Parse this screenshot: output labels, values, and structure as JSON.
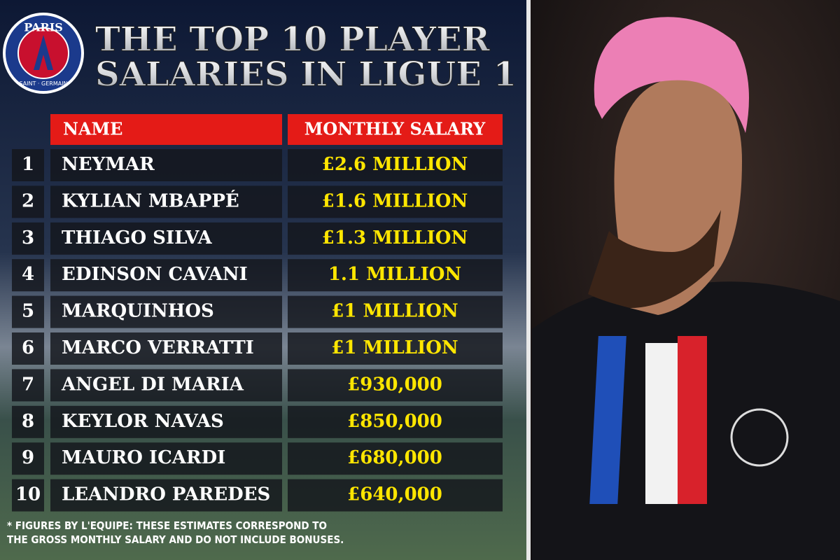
{
  "logo": {
    "top": "PARIS",
    "bottom": "SAINT · GERMAIN"
  },
  "header": {
    "title_lines": [
      "THE TOP 10 PLAYER",
      "SALARIES IN LIGUE 1"
    ]
  },
  "table": {
    "columns": [
      "NAME",
      "MONTHLY SALARY"
    ],
    "rows": [
      [
        "1",
        "NEYMAR",
        "£2.6 MILLION"
      ],
      [
        "2",
        "KYLIAN MBAPPÉ",
        "£1.6 MILLION"
      ],
      [
        "3",
        "THIAGO SILVA",
        "£1.3 MILLION"
      ],
      [
        "4",
        "EDINSON CAVANI",
        "1.1 MILLION"
      ],
      [
        "5",
        "MARQUINHOS",
        "£1 MILLION"
      ],
      [
        "6",
        "MARCO VERRATTI",
        "£1 MILLION"
      ],
      [
        "7",
        "ANGEL DI MARIA",
        "£930,000"
      ],
      [
        "8",
        "KEYLOR NAVAS",
        "£850,000"
      ],
      [
        "9",
        "MAURO ICARDI",
        "£680,000"
      ],
      [
        "10",
        "LEANDRO PAREDES",
        "£640,000"
      ]
    ]
  },
  "footnote": [
    "* FIGURES BY L'EQUIPE: THESE ESTIMATES CORRESPOND TO",
    "THE GROSS MONTHLY SALARY AND DO NOT INCLUDE BONUSES."
  ]
}
